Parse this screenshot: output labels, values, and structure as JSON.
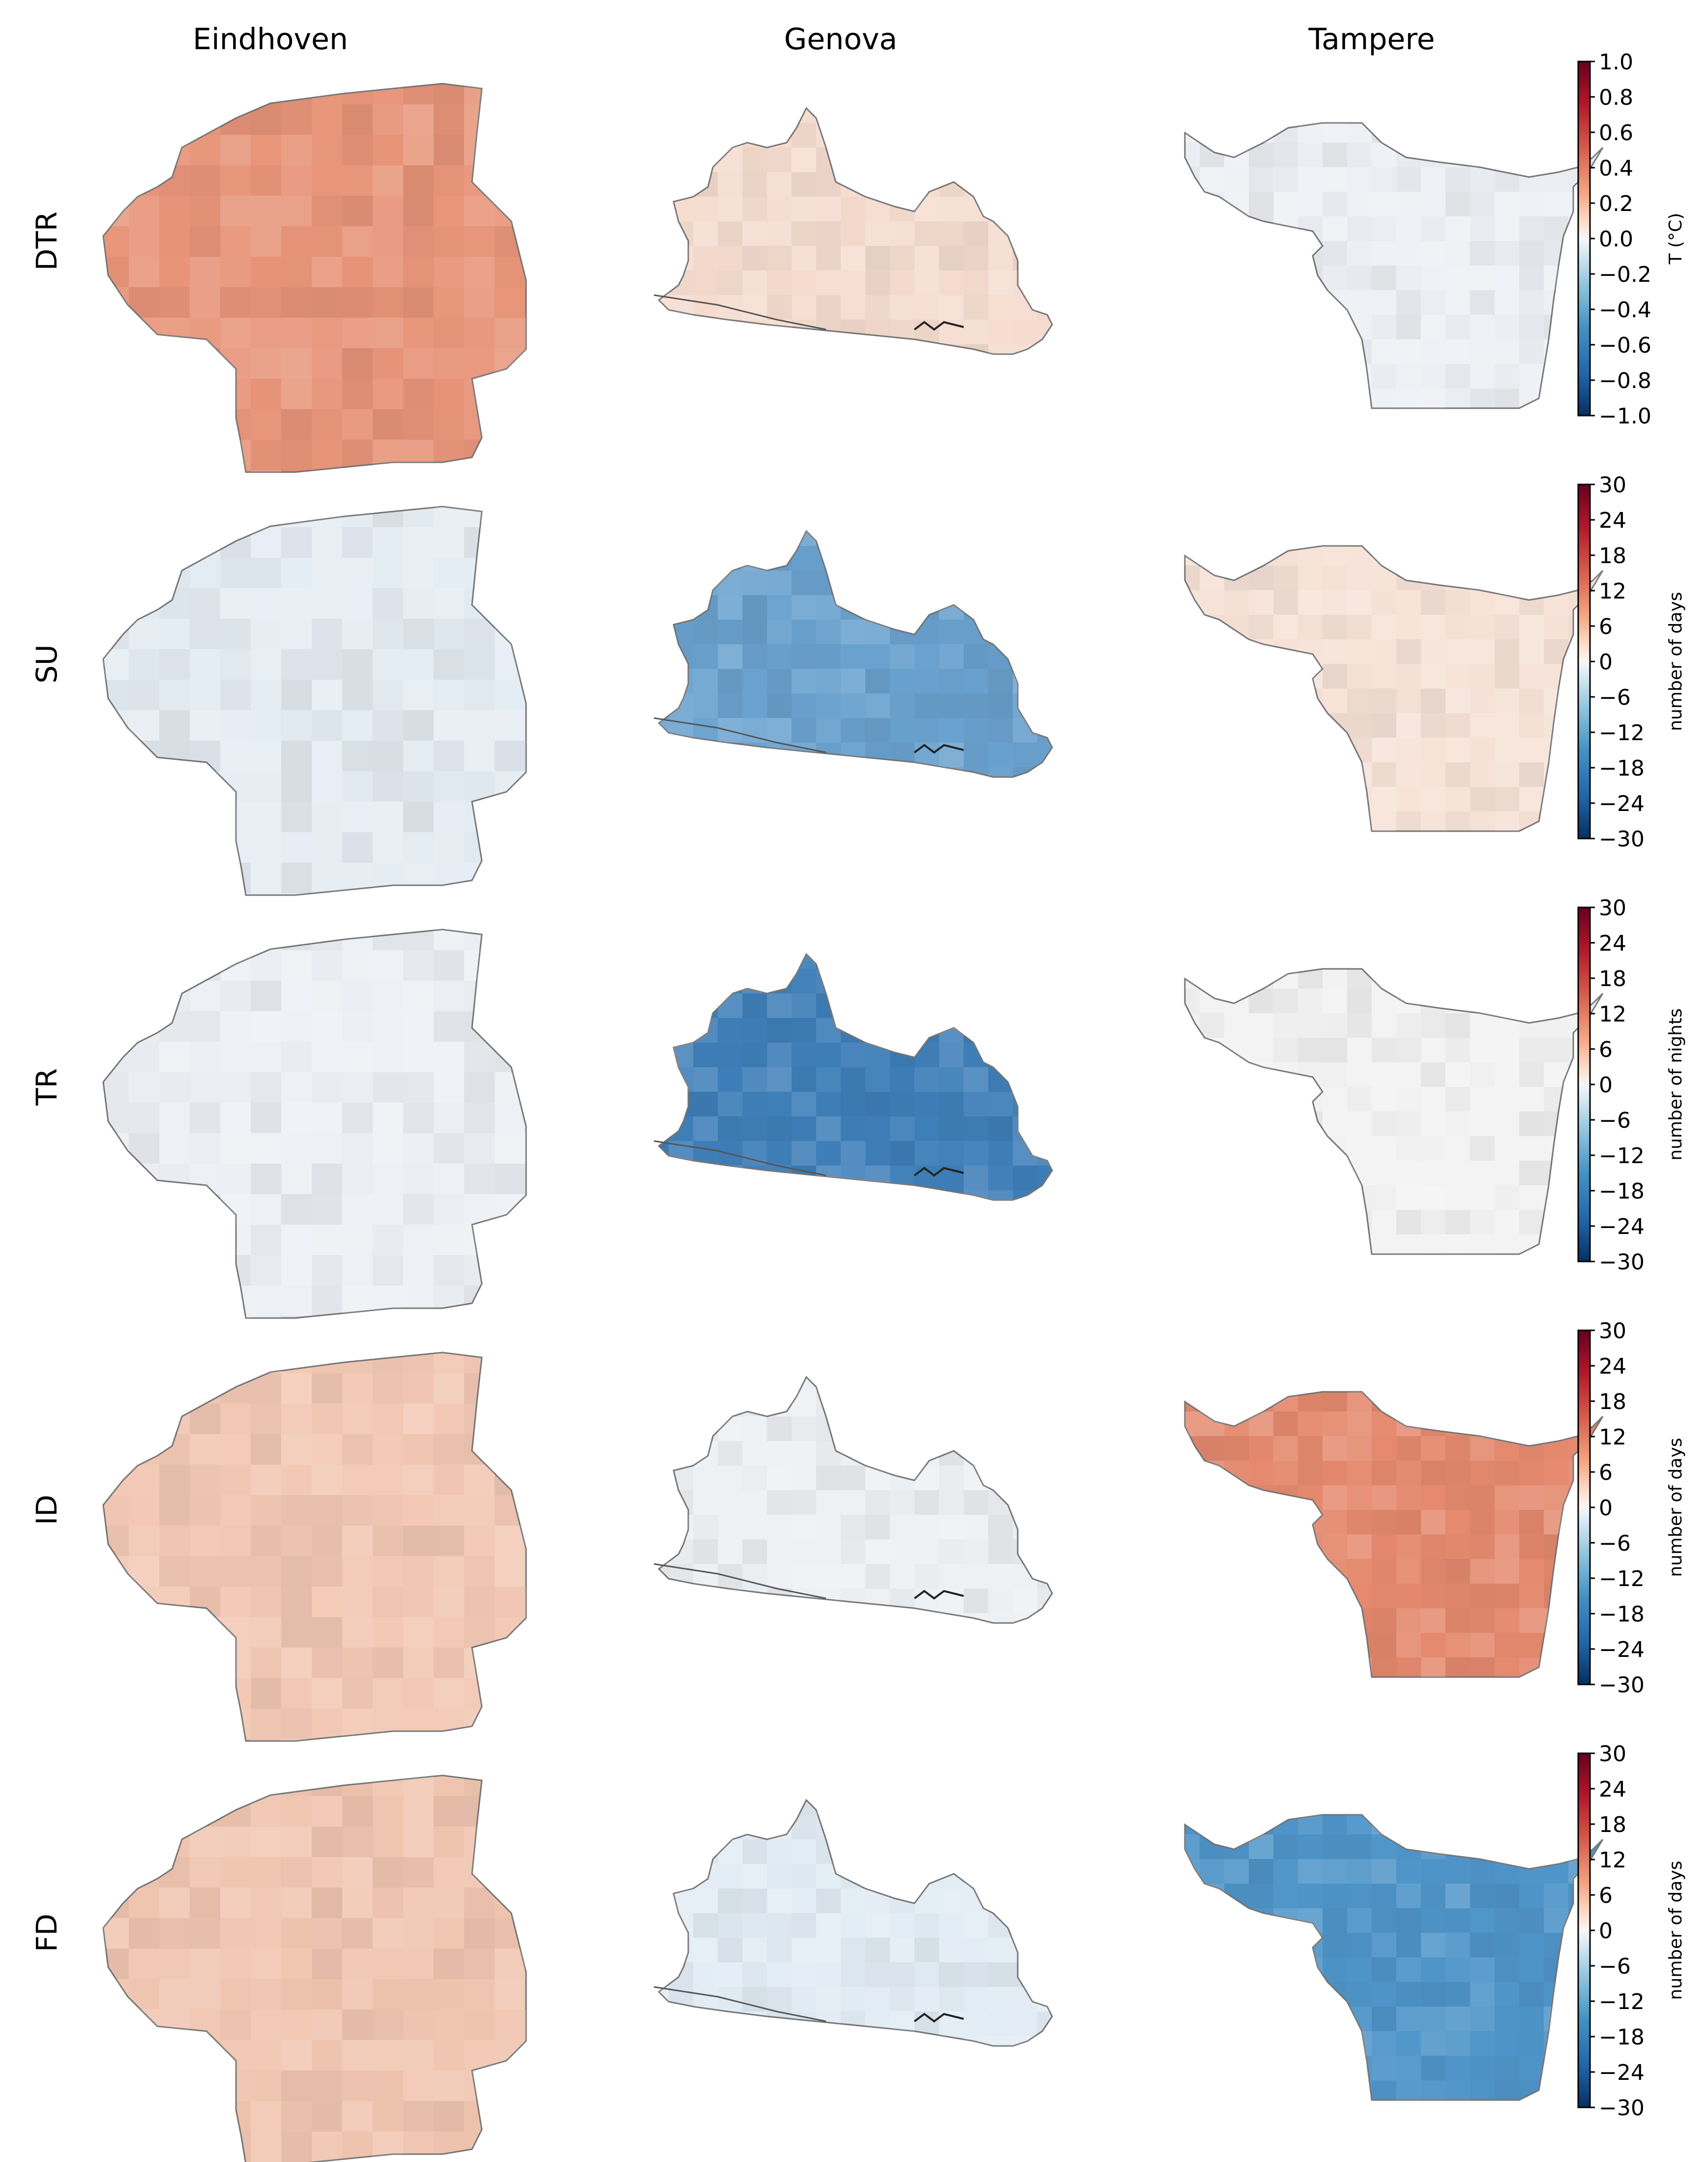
{
  "figure": {
    "columns": [
      "Eindhoven",
      "Genova",
      "Tampere"
    ],
    "rows": [
      {
        "label": "DTR",
        "colorbar": {
          "ticks": [
            "1.0",
            "0.8",
            "0.6",
            "0.4",
            "0.2",
            "0.0",
            "−0.2",
            "−0.4",
            "−0.6",
            "−0.8",
            "−1.0"
          ],
          "unit_label": "T (°C)"
        }
      },
      {
        "label": "SU",
        "colorbar": {
          "ticks": [
            "30",
            "24",
            "18",
            "12",
            "6",
            "0",
            "−6",
            "−12",
            "−18",
            "−24",
            "−30"
          ],
          "unit_label": "number of days"
        }
      },
      {
        "label": "TR",
        "colorbar": {
          "ticks": [
            "30",
            "24",
            "18",
            "12",
            "6",
            "0",
            "−6",
            "−12",
            "−18",
            "−24",
            "−30"
          ],
          "unit_label": "number of nights"
        }
      },
      {
        "label": "ID",
        "colorbar": {
          "ticks": [
            "30",
            "24",
            "18",
            "12",
            "6",
            "0",
            "−6",
            "−12",
            "−18",
            "−24",
            "−30"
          ],
          "unit_label": "number of days"
        }
      },
      {
        "label": "FD",
        "colorbar": {
          "ticks": [
            "30",
            "24",
            "18",
            "12",
            "6",
            "0",
            "−6",
            "−12",
            "−18",
            "−24",
            "−30"
          ],
          "unit_label": "number of days"
        }
      }
    ],
    "colors": {
      "strong_red": "#d6604d",
      "medium_red": "#e8896c",
      "light_red": "#f4c7b0",
      "pale_red": "#f8e1d6",
      "neutral": "#f2f2f2",
      "pale_blue": "#dbe8f1",
      "light_blue": "#a6cbe2",
      "medium_blue": "#4a8fc4",
      "strong_blue": "#1f5a9e",
      "outline": "#777777"
    },
    "fills": {
      "DTR": {
        "Eindhoven": "#e8957a",
        "Genova": "#f6ddd0",
        "Tampere": "#eef1f5"
      },
      "SU": {
        "Eindhoven": "#e5edf4",
        "Genova": "#6aa2cf",
        "Tampere": "#f7e3d8"
      },
      "TR": {
        "Eindhoven": "#edf1f5",
        "Genova": "#3f7fb9",
        "Tampere": "#f3f3f3"
      },
      "ID": {
        "Eindhoven": "#f3c9b5",
        "Genova": "#eef1f4",
        "Tampere": "#e58a6f"
      },
      "FD": {
        "Eindhoven": "#f1c6b1",
        "Genova": "#e3edf5",
        "Tampere": "#4f95c9"
      }
    }
  }
}
